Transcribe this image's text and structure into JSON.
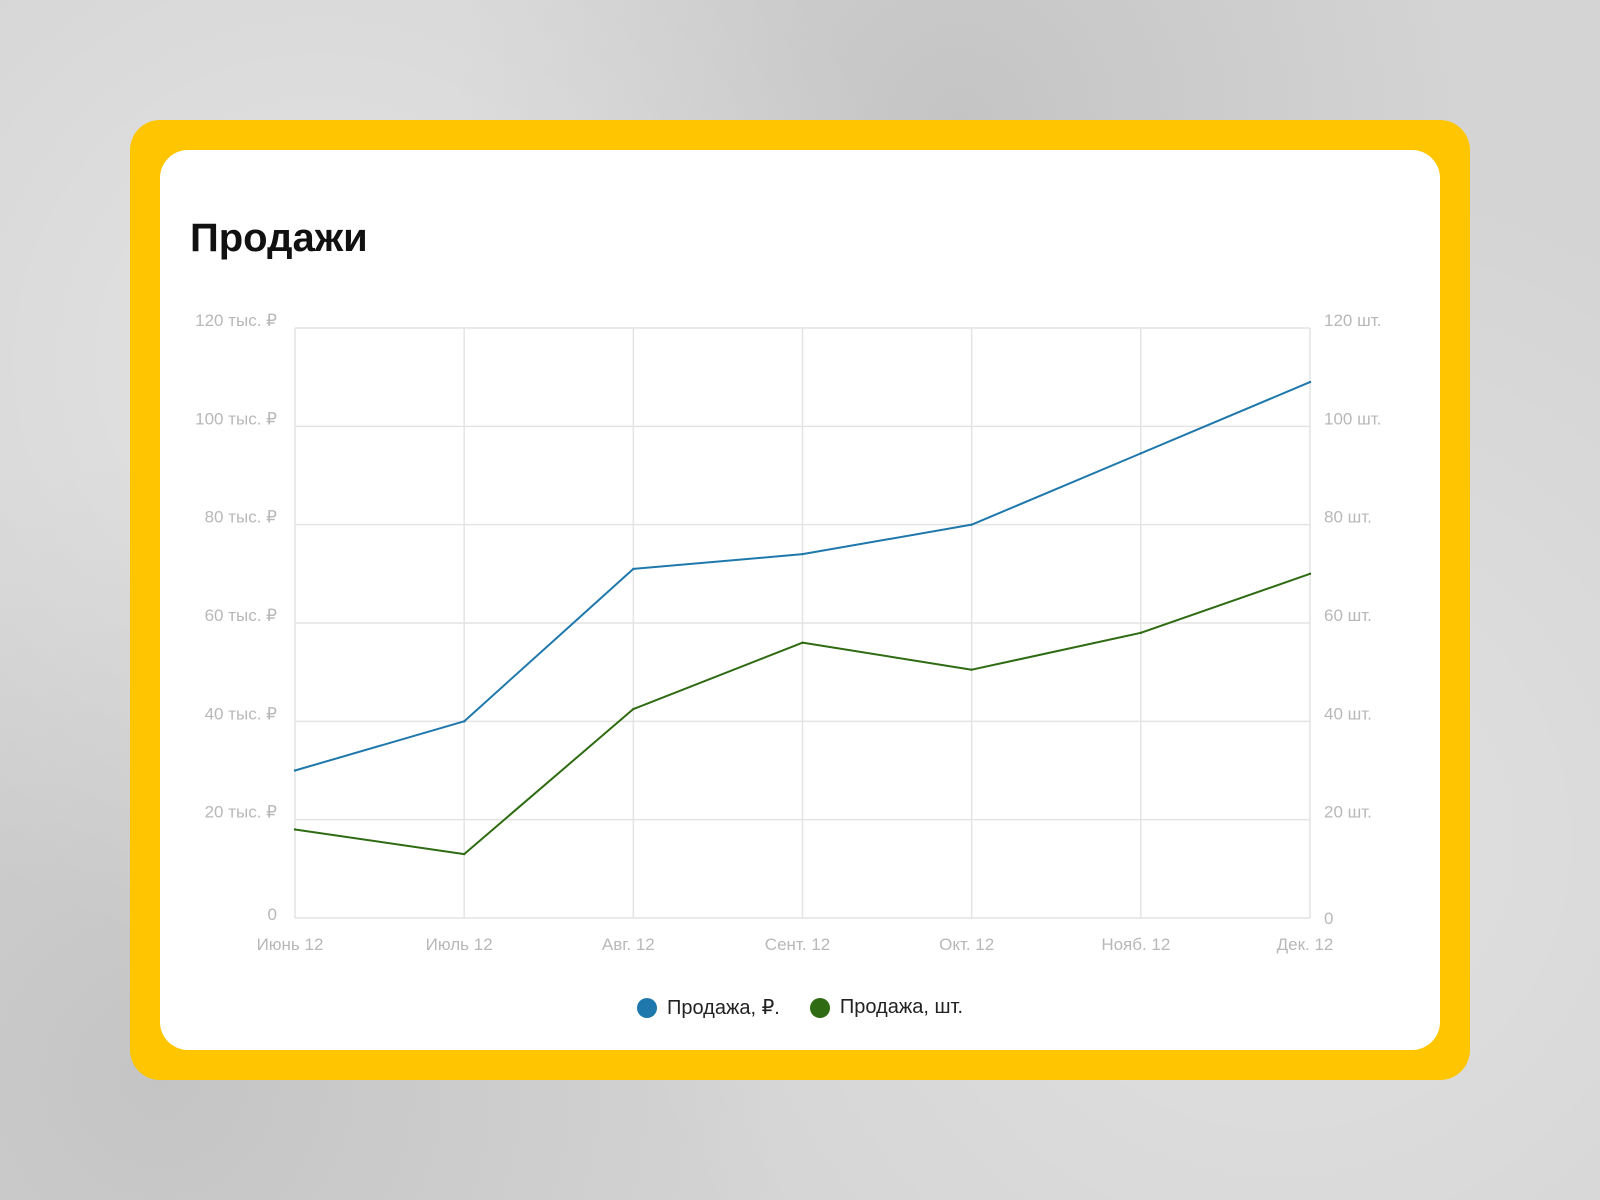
{
  "colors": {
    "frame": "#ffc600",
    "card": "#ffffff",
    "grid": "#e4e4e4",
    "tick": "#b8b8b8"
  },
  "chart_data": {
    "type": "line",
    "title": "Продажи",
    "categories": [
      "Июнь 12",
      "Июль 12",
      "Авг. 12",
      "Сент. 12",
      "Окт. 12",
      "Нояб. 12",
      "Дек. 12"
    ],
    "y_left": {
      "ticks": [
        0,
        20,
        40,
        60,
        80,
        100,
        120
      ],
      "tick_labels": [
        "0",
        "20 тыс. ₽",
        "40 тыс. ₽",
        "60 тыс. ₽",
        "80 тыс. ₽",
        "100 тыс. ₽",
        "120 тыс. ₽"
      ],
      "ylim": [
        0,
        120
      ]
    },
    "y_right": {
      "ticks": [
        0,
        20,
        40,
        60,
        80,
        100,
        120
      ],
      "tick_labels": [
        "0",
        "20 шт.",
        "40 шт.",
        "60 шт.",
        "80 шт.",
        "100 шт.",
        "120 шт."
      ],
      "ylim": [
        0,
        120
      ]
    },
    "series": [
      {
        "name": "Продажа, ₽.",
        "axis": "left",
        "color": "#1f78ab",
        "values": [
          30,
          40,
          71,
          74,
          80,
          94.5,
          109
        ]
      },
      {
        "name": "Продажа, шт.",
        "axis": "right",
        "color": "#2f6b12",
        "values": [
          18,
          13,
          42.5,
          56,
          50.5,
          58,
          70
        ]
      }
    ],
    "grid": true,
    "legend_position": "bottom-center"
  }
}
